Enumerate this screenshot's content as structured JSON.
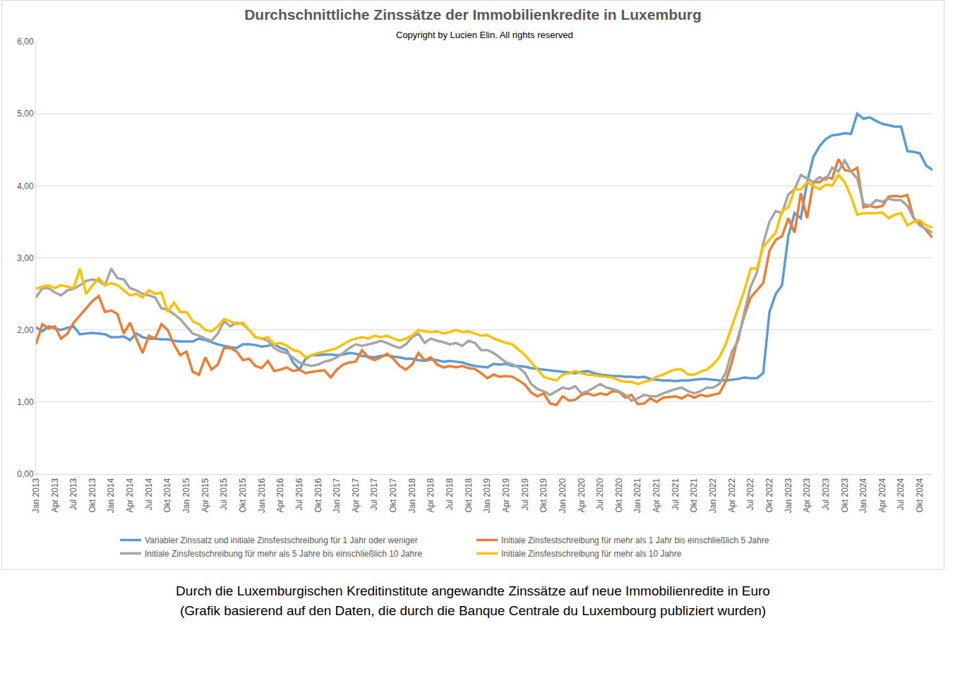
{
  "chart_data": {
    "type": "line",
    "title": "Durchschnittliche Zinssätze der Immobilienkredite in Luxemburg",
    "subtitle": "Copyright by Lucien Elin. All rights reserved",
    "annotations": [
      "Durch die Luxemburgischen Kreditinstitute angewandte Zinssätze auf neue Immobilienredite in Euro",
      "(Grafik basierend auf den Daten, die durch die Banque Centrale du Luxembourg publiziert wurden)"
    ],
    "categories": [
      "Jan 2013",
      null,
      null,
      "Apr 2013",
      null,
      null,
      "Jul 2013",
      null,
      null,
      "Okt 2013",
      null,
      null,
      "Jan 2014",
      null,
      null,
      "Apr 2014",
      null,
      null,
      "Jul 2014",
      null,
      null,
      "Okt 2014",
      null,
      null,
      "Jan 2015",
      null,
      null,
      "Apr 2015",
      null,
      null,
      "Jul 2015",
      null,
      null,
      "Okt 2015",
      null,
      null,
      "Jan 2016",
      null,
      null,
      "Apr 2016",
      null,
      null,
      "Jul 2016",
      null,
      null,
      "Okt 2016",
      null,
      null,
      "Jan 2017",
      null,
      null,
      "Apr 2017",
      null,
      null,
      "Jul 2017",
      null,
      null,
      "Okt 2017",
      null,
      null,
      "Jan 2018",
      null,
      null,
      "Apr 2018",
      null,
      null,
      "Jul 2018",
      null,
      null,
      "Okt 2018",
      null,
      null,
      "Jan 2019",
      null,
      null,
      "Apr 2019",
      null,
      null,
      "Jul 2019",
      null,
      null,
      "Okt 2019",
      null,
      null,
      "Jan 2020",
      null,
      null,
      "Apr 2020",
      null,
      null,
      "Jul 2020",
      null,
      null,
      "Okt 2020",
      null,
      null,
      "Jan 2021",
      null,
      null,
      "Apr 2021",
      null,
      null,
      "Jul 2021",
      null,
      null,
      "Okt 2021",
      null,
      null,
      "Jan 2022",
      null,
      null,
      "Apr 2022",
      null,
      null,
      "Jul 2022",
      null,
      null,
      "Okt 2022",
      null,
      null,
      "Jan 2023",
      null,
      null,
      "Apr 2023",
      null,
      null,
      "Jul 2023",
      null,
      null,
      "Okt 2023",
      null,
      null,
      "Jan 2024",
      null,
      null,
      "Apr 2024",
      null,
      null,
      "Jul 2024",
      null,
      null,
      "Okt 2024",
      null,
      null
    ],
    "series": [
      {
        "name": "Variabler Zinssatz und initiale Zinsfestschreibung für 1 Jahr oder weniger",
        "color": "#5b9bd5",
        "values": [
          2.04,
          1.98,
          2.05,
          2.02,
          2.0,
          2.03,
          2.05,
          1.94,
          1.95,
          1.96,
          1.95,
          1.94,
          1.9,
          1.9,
          1.91,
          1.86,
          1.95,
          1.9,
          1.88,
          1.88,
          1.87,
          1.87,
          1.85,
          1.84,
          1.84,
          1.84,
          1.88,
          1.86,
          1.83,
          1.8,
          1.78,
          1.76,
          1.75,
          1.8,
          1.8,
          1.79,
          1.77,
          1.78,
          1.8,
          1.75,
          1.72,
          1.55,
          1.45,
          1.6,
          1.65,
          1.65,
          1.66,
          1.66,
          1.65,
          1.66,
          1.68,
          1.67,
          1.64,
          1.63,
          1.62,
          1.64,
          1.65,
          1.63,
          1.62,
          1.6,
          1.6,
          1.58,
          1.57,
          1.59,
          1.58,
          1.56,
          1.57,
          1.56,
          1.55,
          1.52,
          1.5,
          1.49,
          1.48,
          1.53,
          1.52,
          1.53,
          1.5,
          1.5,
          1.49,
          1.47,
          1.46,
          1.45,
          1.44,
          1.43,
          1.42,
          1.41,
          1.4,
          1.42,
          1.43,
          1.4,
          1.38,
          1.37,
          1.36,
          1.36,
          1.35,
          1.35,
          1.34,
          1.35,
          1.32,
          1.31,
          1.3,
          1.3,
          1.29,
          1.3,
          1.3,
          1.31,
          1.32,
          1.32,
          1.31,
          1.3,
          1.3,
          1.31,
          1.32,
          1.34,
          1.33,
          1.33,
          1.4,
          2.25,
          2.5,
          2.62,
          3.3,
          3.62,
          3.55,
          4.05,
          4.4,
          4.55,
          4.65,
          4.7,
          4.71,
          4.73,
          4.72,
          5.0,
          4.93,
          4.95,
          4.9,
          4.86,
          4.84,
          4.82,
          4.82,
          4.48,
          4.47,
          4.45,
          4.28,
          4.22
        ]
      },
      {
        "name": "Initiale Zinsfestschreibung für mehr als 1 Jahr bis einschließlich 5 Jahre",
        "color": "#ed7d31",
        "values": [
          1.8,
          2.08,
          2.02,
          2.05,
          1.88,
          1.95,
          2.1,
          2.2,
          2.3,
          2.4,
          2.47,
          2.25,
          2.27,
          2.22,
          1.95,
          2.1,
          1.88,
          1.68,
          1.92,
          1.88,
          2.08,
          2.0,
          1.8,
          1.65,
          1.7,
          1.42,
          1.38,
          1.62,
          1.45,
          1.52,
          1.75,
          1.75,
          1.7,
          1.58,
          1.6,
          1.5,
          1.47,
          1.57,
          1.43,
          1.45,
          1.48,
          1.43,
          1.45,
          1.4,
          1.42,
          1.43,
          1.44,
          1.34,
          1.45,
          1.52,
          1.55,
          1.56,
          1.72,
          1.62,
          1.58,
          1.62,
          1.67,
          1.6,
          1.5,
          1.45,
          1.52,
          1.68,
          1.58,
          1.62,
          1.52,
          1.48,
          1.5,
          1.48,
          1.5,
          1.47,
          1.46,
          1.4,
          1.33,
          1.38,
          1.35,
          1.36,
          1.35,
          1.3,
          1.24,
          1.13,
          1.08,
          1.12,
          0.98,
          0.96,
          1.08,
          1.02,
          1.03,
          1.1,
          1.12,
          1.09,
          1.12,
          1.1,
          1.15,
          1.14,
          1.06,
          1.1,
          0.97,
          0.98,
          1.05,
          1.0,
          1.06,
          1.07,
          1.08,
          1.05,
          1.1,
          1.06,
          1.1,
          1.08,
          1.1,
          1.12,
          1.28,
          1.55,
          1.9,
          2.2,
          2.45,
          2.55,
          2.65,
          3.1,
          3.25,
          3.3,
          3.55,
          3.35,
          3.9,
          3.55,
          4.05,
          4.05,
          4.12,
          4.1,
          4.37,
          4.22,
          4.2,
          4.25,
          3.7,
          3.72,
          3.7,
          3.72,
          3.85,
          3.86,
          3.85,
          3.87,
          3.55,
          3.48,
          3.38,
          3.28
        ]
      },
      {
        "name": "Initiale Zinsfestschreibung für mehr als 5 Jahre bis einschließlich 10 Jahre",
        "color": "#a5a5a5",
        "values": [
          2.45,
          2.58,
          2.58,
          2.52,
          2.48,
          2.55,
          2.57,
          2.62,
          2.68,
          2.7,
          2.68,
          2.62,
          2.85,
          2.72,
          2.7,
          2.58,
          2.55,
          2.5,
          2.48,
          2.45,
          2.3,
          2.28,
          2.22,
          2.15,
          2.05,
          1.95,
          1.92,
          1.88,
          1.85,
          1.95,
          2.12,
          2.05,
          2.1,
          2.08,
          2.0,
          1.9,
          1.88,
          1.85,
          1.75,
          1.7,
          1.68,
          1.62,
          1.55,
          1.52,
          1.5,
          1.52,
          1.56,
          1.58,
          1.62,
          1.68,
          1.75,
          1.8,
          1.78,
          1.8,
          1.82,
          1.85,
          1.82,
          1.78,
          1.75,
          1.8,
          1.9,
          1.95,
          1.82,
          1.88,
          1.85,
          1.83,
          1.8,
          1.82,
          1.78,
          1.85,
          1.82,
          1.72,
          1.72,
          1.68,
          1.62,
          1.55,
          1.52,
          1.48,
          1.4,
          1.25,
          1.18,
          1.15,
          1.1,
          1.15,
          1.2,
          1.18,
          1.22,
          1.12,
          1.15,
          1.2,
          1.25,
          1.2,
          1.18,
          1.15,
          1.1,
          1.02,
          1.05,
          1.1,
          1.08,
          1.08,
          1.12,
          1.15,
          1.18,
          1.2,
          1.15,
          1.12,
          1.15,
          1.2,
          1.2,
          1.25,
          1.4,
          1.7,
          1.85,
          2.25,
          2.6,
          2.8,
          3.2,
          3.5,
          3.65,
          3.62,
          3.88,
          3.95,
          4.15,
          4.1,
          4.05,
          4.12,
          4.08,
          4.25,
          4.2,
          4.35,
          4.2,
          4.1,
          3.75,
          3.72,
          3.8,
          3.78,
          3.82,
          3.8,
          3.8,
          3.72,
          3.55,
          3.45,
          3.4,
          3.35
        ]
      },
      {
        "name": "Initiale Zinsfestschreibung für mehr als 10 Jahre",
        "color": "#ffc000",
        "values": [
          2.57,
          2.6,
          2.62,
          2.58,
          2.62,
          2.6,
          2.58,
          2.85,
          2.5,
          2.62,
          2.72,
          2.62,
          2.65,
          2.62,
          2.55,
          2.48,
          2.5,
          2.45,
          2.55,
          2.5,
          2.52,
          2.25,
          2.38,
          2.25,
          2.25,
          2.12,
          2.08,
          2.0,
          1.98,
          2.05,
          2.15,
          2.12,
          2.08,
          2.1,
          2.0,
          1.9,
          1.88,
          1.9,
          1.8,
          1.82,
          1.78,
          1.72,
          1.7,
          1.62,
          1.65,
          1.68,
          1.7,
          1.72,
          1.75,
          1.8,
          1.85,
          1.88,
          1.9,
          1.88,
          1.92,
          1.9,
          1.92,
          1.88,
          1.85,
          1.88,
          1.92,
          2.0,
          1.98,
          1.97,
          1.98,
          1.95,
          1.97,
          2.0,
          1.97,
          1.98,
          1.95,
          1.92,
          1.93,
          1.88,
          1.85,
          1.82,
          1.8,
          1.72,
          1.65,
          1.55,
          1.45,
          1.35,
          1.32,
          1.3,
          1.38,
          1.4,
          1.43,
          1.4,
          1.38,
          1.37,
          1.36,
          1.35,
          1.34,
          1.3,
          1.28,
          1.28,
          1.25,
          1.28,
          1.3,
          1.35,
          1.38,
          1.42,
          1.45,
          1.45,
          1.38,
          1.38,
          1.42,
          1.45,
          1.52,
          1.62,
          1.8,
          2.05,
          2.3,
          2.55,
          2.85,
          2.85,
          3.15,
          3.25,
          3.35,
          3.65,
          3.7,
          3.95,
          3.95,
          4.05,
          4.0,
          3.95,
          4.02,
          4.0,
          4.15,
          4.05,
          3.85,
          3.6,
          3.62,
          3.62,
          3.62,
          3.63,
          3.55,
          3.6,
          3.62,
          3.45,
          3.5,
          3.52,
          3.45,
          3.42
        ]
      }
    ],
    "ylim": [
      0,
      6
    ],
    "yticks": [
      {
        "value": 0,
        "label": "0,00"
      },
      {
        "value": 1,
        "label": "1,00"
      },
      {
        "value": 2,
        "label": "2,00"
      },
      {
        "value": 3,
        "label": "3,00"
      },
      {
        "value": 4,
        "label": "4,00"
      },
      {
        "value": 5,
        "label": "5,00"
      },
      {
        "value": 6,
        "label": "6,00"
      }
    ],
    "grid": true,
    "legend": "bottom"
  }
}
